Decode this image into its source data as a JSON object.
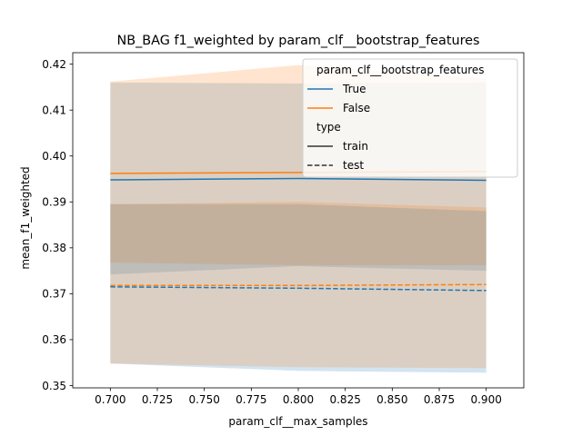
{
  "chart_data": {
    "type": "line",
    "title": "NB_BAG f1_weighted by param_clf__bootstrap_features",
    "xlabel": "param_clf__max_samples",
    "ylabel": "mean_f1_weighted",
    "xlim": [
      0.68,
      0.92
    ],
    "ylim": [
      0.3495,
      0.4225
    ],
    "xticks": [
      "0.700",
      "0.725",
      "0.750",
      "0.775",
      "0.800",
      "0.825",
      "0.850",
      "0.875",
      "0.900"
    ],
    "yticks": [
      "0.35",
      "0.36",
      "0.37",
      "0.38",
      "0.39",
      "0.40",
      "0.41",
      "0.42"
    ],
    "grid": false,
    "legend": {
      "placement": "top-right",
      "hue_title": "param_clf__bootstrap_features",
      "hue_entries": [
        {
          "label": "True",
          "color": "#1f77b4"
        },
        {
          "label": "False",
          "color": "#ff7f0e"
        }
      ],
      "style_title": "type",
      "style_entries": [
        {
          "label": "train",
          "dash": "solid"
        },
        {
          "label": "test",
          "dash": "dashed"
        }
      ]
    },
    "x": [
      0.7,
      0.8,
      0.9
    ],
    "series": [
      {
        "name": "True",
        "type": "train",
        "color": "#1f77b4",
        "dashed": false,
        "values": [
          0.3948,
          0.3951,
          0.3947
        ],
        "lower": [
          0.3742,
          0.376,
          0.375
        ],
        "upper": [
          0.416,
          0.4158,
          0.416
        ]
      },
      {
        "name": "False",
        "type": "train",
        "color": "#ff7f0e",
        "dashed": false,
        "values": [
          0.3962,
          0.3964,
          0.3966
        ],
        "lower": [
          0.3768,
          0.3762,
          0.3762
        ],
        "upper": [
          0.4162,
          0.4198,
          0.4168
        ]
      },
      {
        "name": "True",
        "type": "test",
        "color": "#1f77b4",
        "dashed": true,
        "values": [
          0.3715,
          0.3712,
          0.3707
        ],
        "lower": [
          0.3548,
          0.3532,
          0.3528
        ],
        "upper": [
          0.3895,
          0.3895,
          0.388
        ]
      },
      {
        "name": "False",
        "type": "test",
        "color": "#ff7f0e",
        "dashed": true,
        "values": [
          0.3718,
          0.3718,
          0.372
        ],
        "lower": [
          0.3548,
          0.354,
          0.3538
        ],
        "upper": [
          0.3895,
          0.39,
          0.3888
        ]
      }
    ]
  }
}
